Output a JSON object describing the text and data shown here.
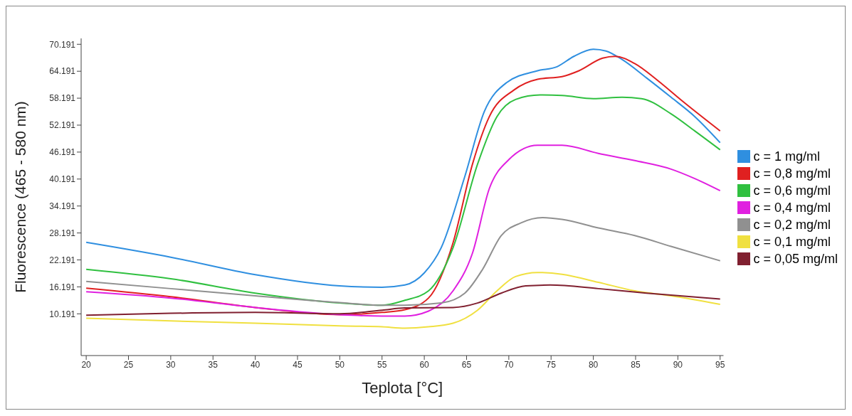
{
  "chart_data": {
    "type": "line",
    "xlabel": "Teplota [°C]",
    "ylabel": "Fluorescence (465 - 580 nm)",
    "xlim": [
      19.4,
      95.4
    ],
    "xticks": [
      20,
      25,
      30,
      35,
      40,
      45,
      50,
      55,
      60,
      65,
      70,
      75,
      80,
      85,
      90,
      95
    ],
    "ylim": [
      0.9,
      71.5
    ],
    "yticks": [
      10.191,
      16.191,
      22.191,
      28.191,
      34.191,
      40.191,
      46.191,
      52.191,
      58.191,
      64.191,
      70.191
    ],
    "legend": "right",
    "marker": "none",
    "line_style": "solid",
    "series": [
      {
        "name": "c = 1 mg/ml",
        "color": "#2f8fe0",
        "x": [
          20,
          30,
          40,
          50,
          55,
          57.7,
          60,
          62,
          64.8,
          67.1,
          69.7,
          73.4,
          75.7,
          77.7,
          80,
          81.5,
          83.4,
          86.3,
          89.2,
          92,
          95
        ],
        "values": [
          26.1,
          22.8,
          18.9,
          16.4,
          16.1,
          16.6,
          19.3,
          24.9,
          40.8,
          55.2,
          61.6,
          64.3,
          65.2,
          67.5,
          69.1,
          68.7,
          66.8,
          62.7,
          58.4,
          54.1,
          48.3
        ]
      },
      {
        "name": "c = 0,8 mg/ml",
        "color": "#e02020",
        "x": [
          20,
          30,
          40,
          50,
          55,
          57.7,
          60.5,
          63.4,
          65.7,
          67.7,
          70.6,
          73.4,
          76.3,
          78.3,
          81.1,
          82.6,
          84.9,
          87.7,
          90.5,
          95
        ],
        "values": [
          15.9,
          14.0,
          11.6,
          10.0,
          10.5,
          11.1,
          13.7,
          26.0,
          43.5,
          54.1,
          60.0,
          62.4,
          63.0,
          64.3,
          67.1,
          67.5,
          65.9,
          62.0,
          57.6,
          50.9
        ]
      },
      {
        "name": "c = 0,6 mg/ml",
        "color": "#30c040",
        "x": [
          20,
          30,
          40,
          50,
          55,
          57.7,
          60.5,
          63.4,
          66.3,
          68.6,
          70.8,
          73.7,
          76.3,
          80,
          83.4,
          85.7,
          89.2,
          92,
          95
        ],
        "values": [
          20.1,
          18.0,
          14.8,
          12.6,
          12.1,
          13.2,
          15.3,
          24.9,
          43.5,
          54.1,
          57.9,
          58.9,
          58.8,
          58.1,
          58.4,
          58.1,
          54.7,
          50.9,
          46.7
        ]
      },
      {
        "name": "c = 0,4 mg/ml",
        "color": "#e020e0",
        "x": [
          20,
          30,
          40,
          50,
          55,
          57.7,
          60.5,
          63.4,
          65.7,
          67.7,
          70,
          73.4,
          76.3,
          80.6,
          84.9,
          89.2,
          92,
          95
        ],
        "values": [
          15.1,
          13.7,
          11.6,
          10.0,
          9.7,
          9.7,
          10.8,
          15.3,
          23.7,
          38.1,
          44.5,
          47.7,
          47.7,
          45.9,
          44.3,
          42.4,
          40.3,
          37.6
        ]
      },
      {
        "name": "c = 0,2 mg/ml",
        "color": "#909090",
        "x": [
          20,
          30,
          40,
          50,
          55,
          57.7,
          62,
          64.8,
          66.9,
          69.1,
          71.4,
          74,
          76.3,
          80.6,
          84.9,
          89.2,
          95
        ],
        "values": [
          17.4,
          15.8,
          14.2,
          12.7,
          12.1,
          12.1,
          12.6,
          14.8,
          20.1,
          27.6,
          30.4,
          31.6,
          31.2,
          29.3,
          27.6,
          25.2,
          22.0
        ]
      },
      {
        "name": "c = 0,1 mg/ml",
        "color": "#f0e040",
        "x": [
          20,
          30,
          40,
          50,
          55,
          57.7,
          60.5,
          63.4,
          66.3,
          68.6,
          70.8,
          73.4,
          76.3,
          80.6,
          84.9,
          89.2,
          95
        ],
        "values": [
          9.2,
          8.6,
          8.1,
          7.5,
          7.3,
          7.0,
          7.3,
          8.1,
          11.0,
          15.3,
          18.5,
          19.4,
          19.0,
          17.2,
          15.3,
          14.2,
          12.3
        ]
      },
      {
        "name": "c = 0,05 mg/ml",
        "color": "#802030",
        "x": [
          20,
          30,
          40,
          50,
          55,
          57.7,
          63.4,
          66.3,
          69.1,
          72,
          74.9,
          80.6,
          86.3,
          95
        ],
        "values": [
          9.9,
          10.3,
          10.5,
          10.2,
          11.0,
          11.5,
          11.6,
          12.6,
          14.8,
          16.4,
          16.6,
          15.8,
          14.8,
          13.5
        ]
      }
    ]
  }
}
